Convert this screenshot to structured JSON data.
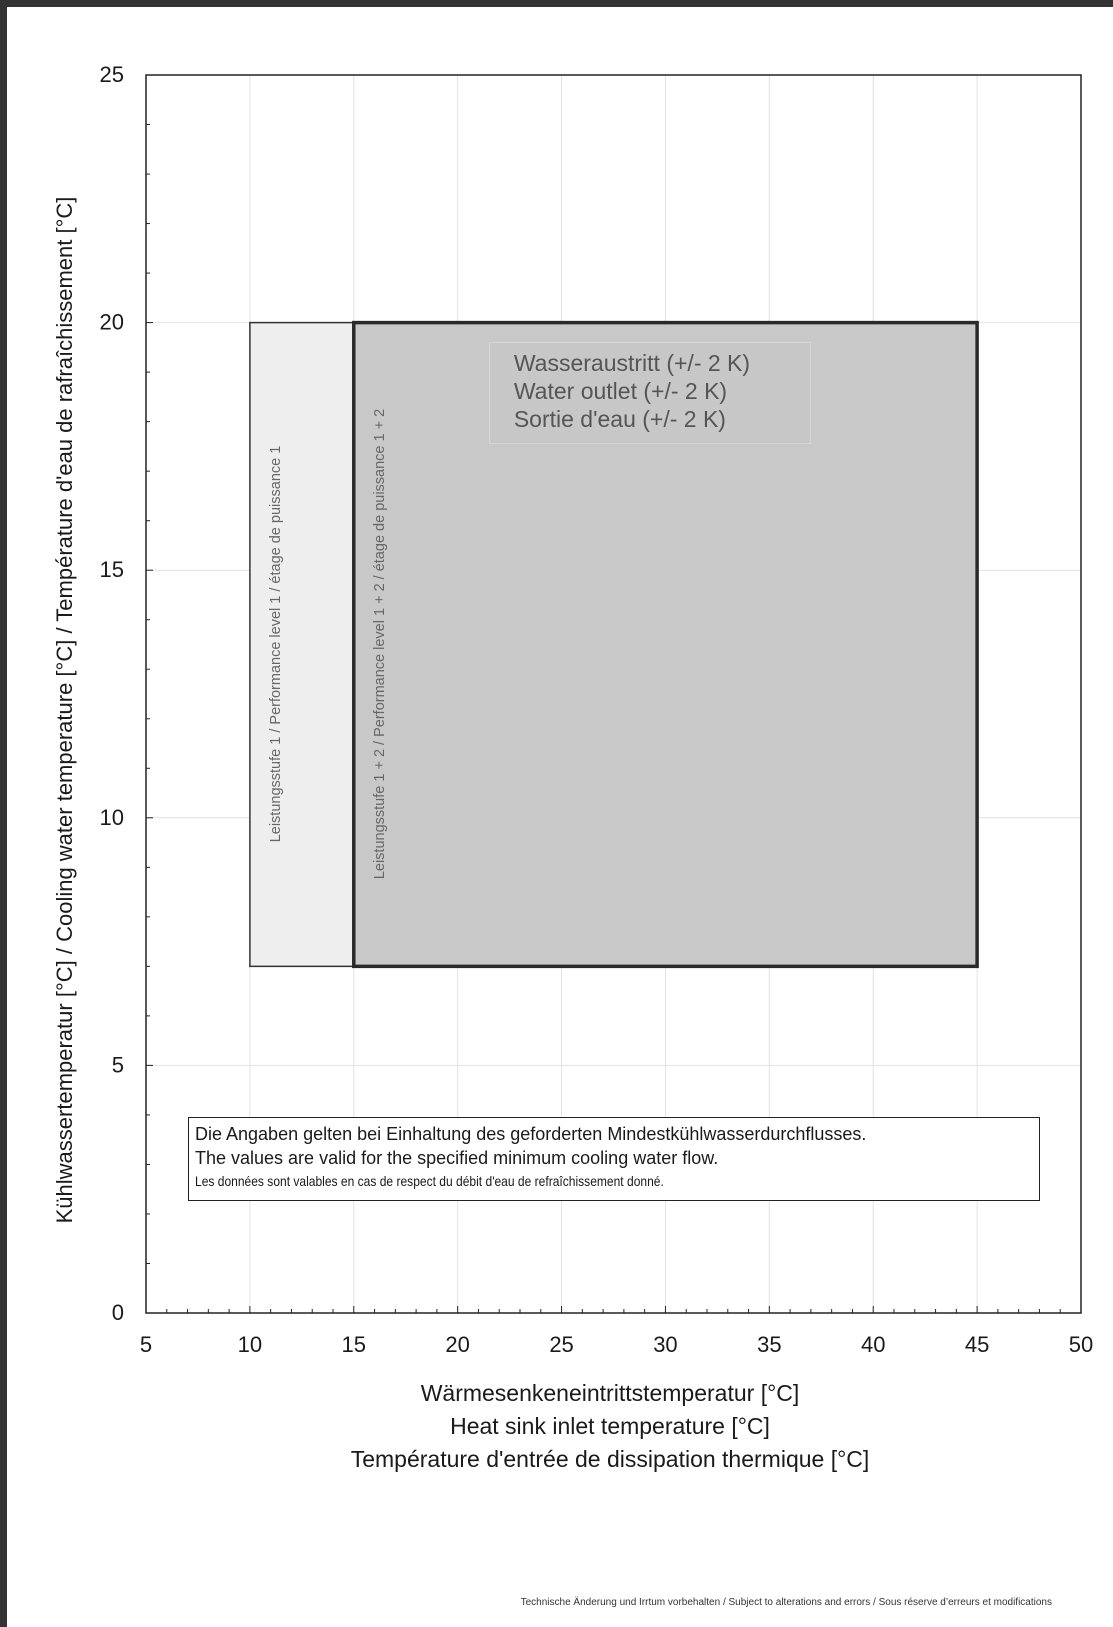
{
  "chart_data": {
    "type": "area",
    "y_label": "Kühlwassertemperatur [°C]  /  Cooling water temperature [°C]  /  Température d'eau de rafraîchissement [°C]",
    "x_label_lines": [
      "Wärmesenkeneintrittstemperatur [°C]",
      "Heat sink inlet temperature [°C]",
      "Température d'entrée de dissipation thermique [°C]"
    ],
    "xlim": [
      5,
      50
    ],
    "ylim": [
      0,
      25
    ],
    "x_ticks": [
      "5",
      "10",
      "15",
      "20",
      "25",
      "30",
      "35",
      "40",
      "45",
      "50"
    ],
    "y_ticks": [
      "0",
      "5",
      "10",
      "15",
      "20",
      "25"
    ],
    "grid": true,
    "regions": [
      {
        "name": "Leistungsstufe 1 / Performance level 1 / étage de puissance 1",
        "x_range": [
          10,
          15
        ],
        "y_range": [
          7,
          20
        ],
        "color": "#eeeeee"
      },
      {
        "name": "Leistungsstufe 1 + 2 / Performance level 1 + 2 / étage de puissance 1 + 2",
        "x_range": [
          15,
          45
        ],
        "y_range": [
          7,
          20
        ],
        "color": "#c8c8c8"
      }
    ],
    "outlet_annotation": [
      "Wasseraustritt  (+/- 2 K)",
      "Water outlet (+/- 2 K)",
      "Sortie d'eau (+/- 2 K)"
    ],
    "note_lines": [
      "Die Angaben gelten bei Einhaltung des geforderten Mindestkühlwasserdurchflusses.",
      "The values are valid for the specified minimum cooling water flow.",
      "Les données sont valables en cas de respect du débit d'eau de refraîchissement donné."
    ]
  },
  "footer": "Technische Änderung und Irrtum vorbehalten  /  Subject to alterations and errors  /  Sous réserve d’erreurs et modifications"
}
